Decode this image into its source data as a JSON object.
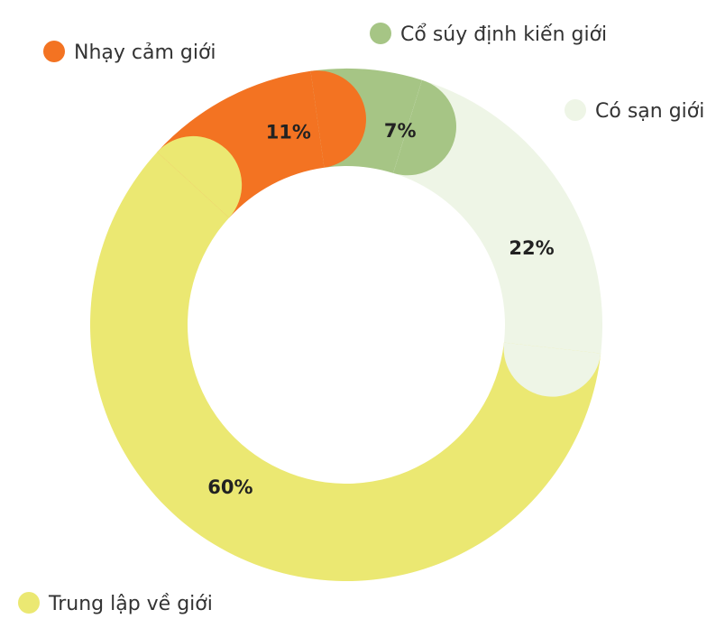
{
  "chart_data": {
    "type": "donut",
    "categories": [
      "Cổ súy định kiến giới",
      "Có sạn giới",
      "Trung lập về giới",
      "Nhạy cảm giới"
    ],
    "values": [
      7,
      22,
      60,
      11
    ],
    "value_labels": [
      "7%",
      "22%",
      "60%",
      "11%"
    ],
    "colors": [
      "#a6c585",
      "#eef5e6",
      "#ebe872",
      "#f37322"
    ]
  }
}
